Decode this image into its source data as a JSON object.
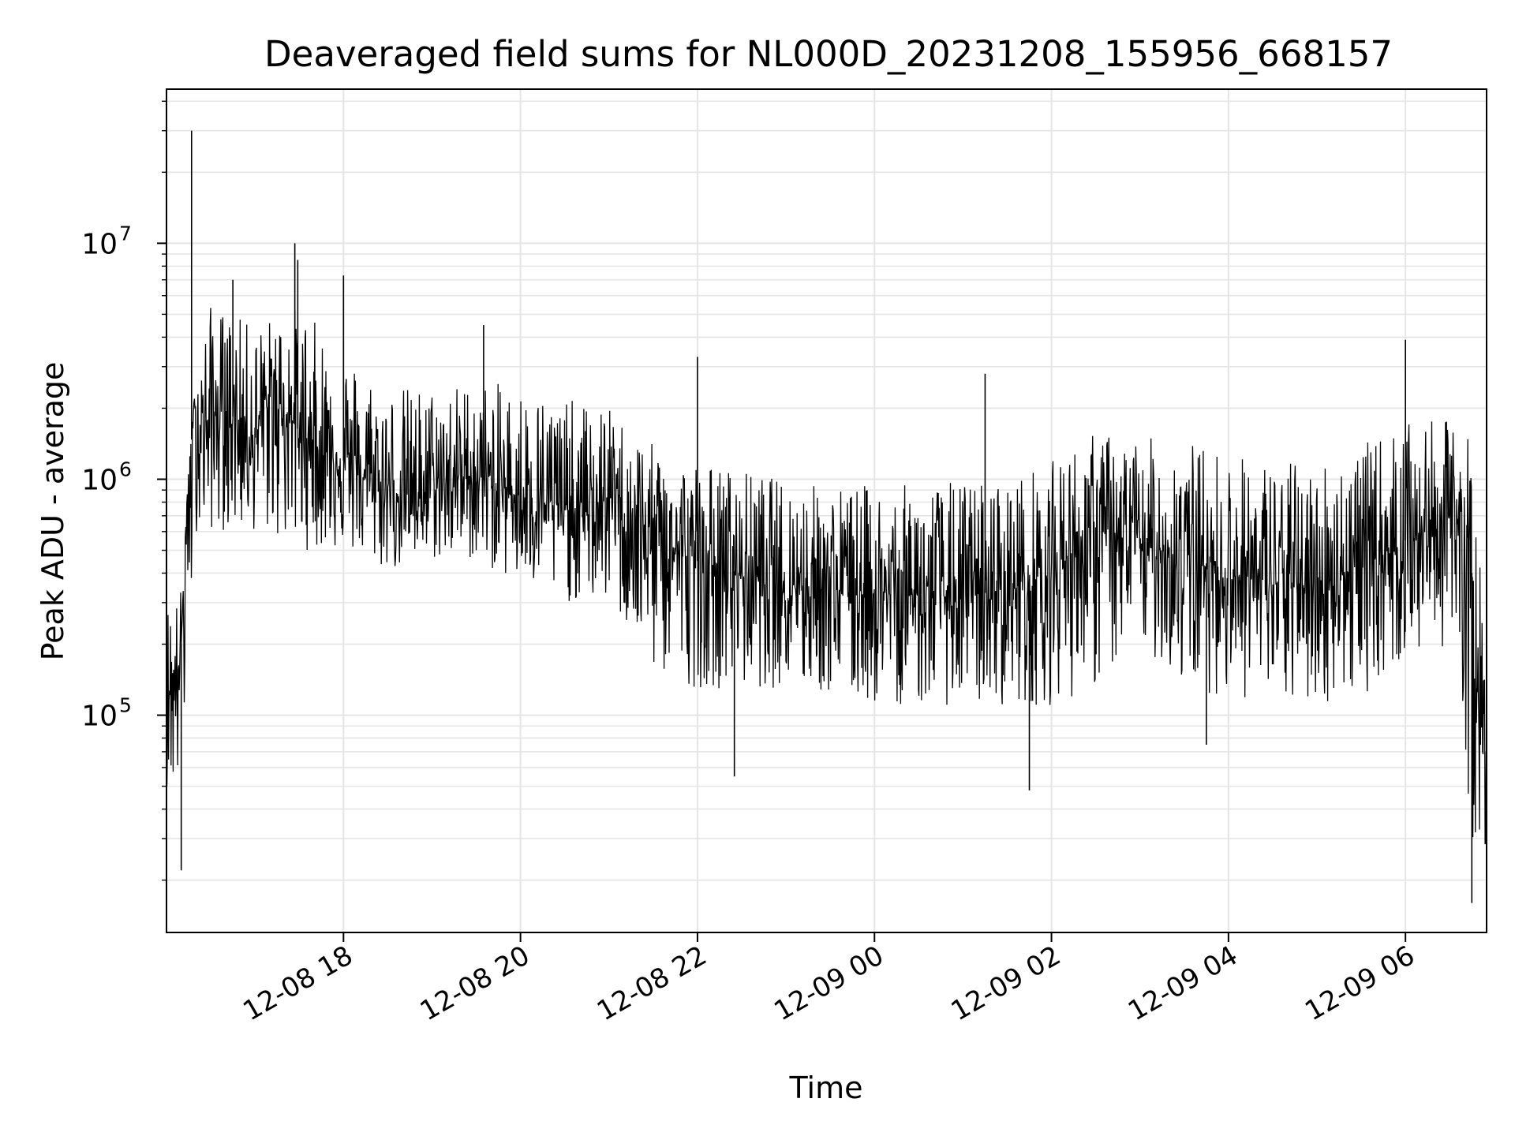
{
  "chart_data": {
    "type": "line",
    "title": "Deaveraged field sums for NL000D_20231208_155956_668157",
    "xlabel": "Time",
    "ylabel": "Peak ADU - average",
    "yscale": "log",
    "ylim": [
      12000,
      45000000
    ],
    "xlim": [
      "2023-12-08 16:00",
      "2023-12-09 06:55"
    ],
    "grid": true,
    "line_color": "#000000",
    "grid_color": "#e5e5e5",
    "xticks": [
      {
        "time": "2023-12-08 18:00",
        "label": "12-08 18"
      },
      {
        "time": "2023-12-08 20:00",
        "label": "12-08 20"
      },
      {
        "time": "2023-12-08 22:00",
        "label": "12-08 22"
      },
      {
        "time": "2023-12-09 00:00",
        "label": "12-09 00"
      },
      {
        "time": "2023-12-09 02:00",
        "label": "12-09 02"
      },
      {
        "time": "2023-12-09 04:00",
        "label": "12-09 04"
      },
      {
        "time": "2023-12-09 06:00",
        "label": "12-09 06"
      }
    ],
    "yticks": [
      {
        "value": 100000,
        "base": "10",
        "exp": "5"
      },
      {
        "value": 1000000,
        "base": "10",
        "exp": "6"
      },
      {
        "value": 10000000,
        "base": "10",
        "exp": "7"
      }
    ],
    "series": [
      {
        "name": "",
        "x": [
          "2023-12-08 16:00",
          "2023-12-08 16:05",
          "2023-12-08 16:10",
          "2023-12-08 16:15",
          "2023-12-08 16:20",
          "2023-12-08 16:25",
          "2023-12-08 16:30",
          "2023-12-08 16:40",
          "2023-12-08 16:50",
          "2023-12-08 17:00",
          "2023-12-08 17:10",
          "2023-12-08 17:20",
          "2023-12-08 17:30",
          "2023-12-08 17:40",
          "2023-12-08 17:50",
          "2023-12-08 18:00",
          "2023-12-08 18:15",
          "2023-12-08 18:30",
          "2023-12-08 18:45",
          "2023-12-08 19:00",
          "2023-12-08 19:15",
          "2023-12-08 19:30",
          "2023-12-08 19:45",
          "2023-12-08 20:00",
          "2023-12-08 20:15",
          "2023-12-08 20:30",
          "2023-12-08 20:45",
          "2023-12-08 21:00",
          "2023-12-08 21:15",
          "2023-12-08 21:30",
          "2023-12-08 21:45",
          "2023-12-08 22:00",
          "2023-12-08 22:15",
          "2023-12-08 22:30",
          "2023-12-08 22:45",
          "2023-12-08 23:00",
          "2023-12-08 23:15",
          "2023-12-08 23:30",
          "2023-12-08 23:45",
          "2023-12-09 00:00",
          "2023-12-09 00:15",
          "2023-12-09 00:30",
          "2023-12-09 00:45",
          "2023-12-09 01:00",
          "2023-12-09 01:15",
          "2023-12-09 01:30",
          "2023-12-09 01:45",
          "2023-12-09 02:00",
          "2023-12-09 02:15",
          "2023-12-09 02:30",
          "2023-12-09 02:45",
          "2023-12-09 03:00",
          "2023-12-09 03:15",
          "2023-12-09 03:30",
          "2023-12-09 03:45",
          "2023-12-09 04:00",
          "2023-12-09 04:15",
          "2023-12-09 04:30",
          "2023-12-09 04:45",
          "2023-12-09 05:00",
          "2023-12-09 05:15",
          "2023-12-09 05:30",
          "2023-12-09 05:45",
          "2023-12-09 06:00",
          "2023-12-09 06:15",
          "2023-12-09 06:30",
          "2023-12-09 06:40",
          "2023-12-09 06:45",
          "2023-12-09 06:50",
          "2023-12-09 06:55"
        ],
        "y": [
          150000,
          120000,
          200000,
          1200000,
          2000000,
          1600000,
          1800000,
          2000000,
          1700000,
          1500000,
          2200000,
          2000000,
          1600000,
          1400000,
          1300000,
          1200000,
          1000000,
          900000,
          850000,
          900000,
          1000000,
          1050000,
          900000,
          850000,
          800000,
          750000,
          700000,
          850000,
          650000,
          550000,
          500000,
          450000,
          420000,
          400000,
          380000,
          370000,
          360000,
          350000,
          340000,
          330000,
          320000,
          330000,
          320000,
          310000,
          330000,
          340000,
          360000,
          400000,
          500000,
          600000,
          550000,
          520000,
          500000,
          480000,
          420000,
          400000,
          380000,
          360000,
          350000,
          360000,
          400000,
          420000,
          480000,
          550000,
          600000,
          700000,
          650000,
          400000,
          80000,
          60000
        ]
      }
    ],
    "envelope": {
      "x": [
        "2023-12-08 16:00",
        "2023-12-08 16:10",
        "2023-12-08 16:20",
        "2023-12-08 16:30",
        "2023-12-08 17:00",
        "2023-12-08 17:30",
        "2023-12-08 18:00",
        "2023-12-08 18:30",
        "2023-12-08 19:00",
        "2023-12-08 19:30",
        "2023-12-08 20:00",
        "2023-12-08 20:30",
        "2023-12-08 21:00",
        "2023-12-08 21:30",
        "2023-12-08 22:00",
        "2023-12-08 22:30",
        "2023-12-08 23:00",
        "2023-12-08 23:30",
        "2023-12-09 00:00",
        "2023-12-09 00:30",
        "2023-12-09 01:00",
        "2023-12-09 01:30",
        "2023-12-09 02:00",
        "2023-12-09 02:30",
        "2023-12-09 03:00",
        "2023-12-09 03:30",
        "2023-12-09 04:00",
        "2023-12-09 04:30",
        "2023-12-09 05:00",
        "2023-12-09 05:30",
        "2023-12-09 06:00",
        "2023-12-09 06:30",
        "2023-12-09 06:45",
        "2023-12-09 06:55"
      ],
      "low": [
        50000,
        45000,
        600000,
        600000,
        600000,
        500000,
        500000,
        400000,
        450000,
        450000,
        350000,
        300000,
        300000,
        150000,
        130000,
        130000,
        130000,
        120000,
        110000,
        110000,
        110000,
        110000,
        110000,
        130000,
        200000,
        130000,
        120000,
        110000,
        110000,
        120000,
        170000,
        200000,
        30000,
        25000
      ],
      "high": [
        300000,
        350000,
        3000000,
        5500000,
        4500000,
        5500000,
        3500000,
        2500000,
        2500000,
        2600000,
        2500000,
        2200000,
        2000000,
        1400000,
        1200000,
        1100000,
        1000000,
        950000,
        950000,
        950000,
        1000000,
        1000000,
        1200000,
        1600000,
        1500000,
        1500000,
        1300000,
        1200000,
        1200000,
        1400000,
        1700000,
        1800000,
        1500000,
        200000
      ]
    },
    "spikes": [
      {
        "x": "2023-12-08 16:17",
        "y": 30000000
      },
      {
        "x": "2023-12-08 16:10",
        "y": 22000
      },
      {
        "x": "2023-12-08 16:45",
        "y": 7000000
      },
      {
        "x": "2023-12-08 17:27",
        "y": 10000000
      },
      {
        "x": "2023-12-08 17:29",
        "y": 8500000
      },
      {
        "x": "2023-12-08 18:00",
        "y": 7300000
      },
      {
        "x": "2023-12-08 19:35",
        "y": 4500000
      },
      {
        "x": "2023-12-08 22:00",
        "y": 3300000
      },
      {
        "x": "2023-12-08 22:25",
        "y": 55000
      },
      {
        "x": "2023-12-09 01:15",
        "y": 2800000
      },
      {
        "x": "2023-12-09 01:45",
        "y": 48000
      },
      {
        "x": "2023-12-09 03:45",
        "y": 75000
      },
      {
        "x": "2023-12-09 06:00",
        "y": 3900000
      },
      {
        "x": "2023-12-09 06:45",
        "y": 16000
      },
      {
        "x": "2023-12-09 06:55",
        "y": 26000
      }
    ]
  }
}
